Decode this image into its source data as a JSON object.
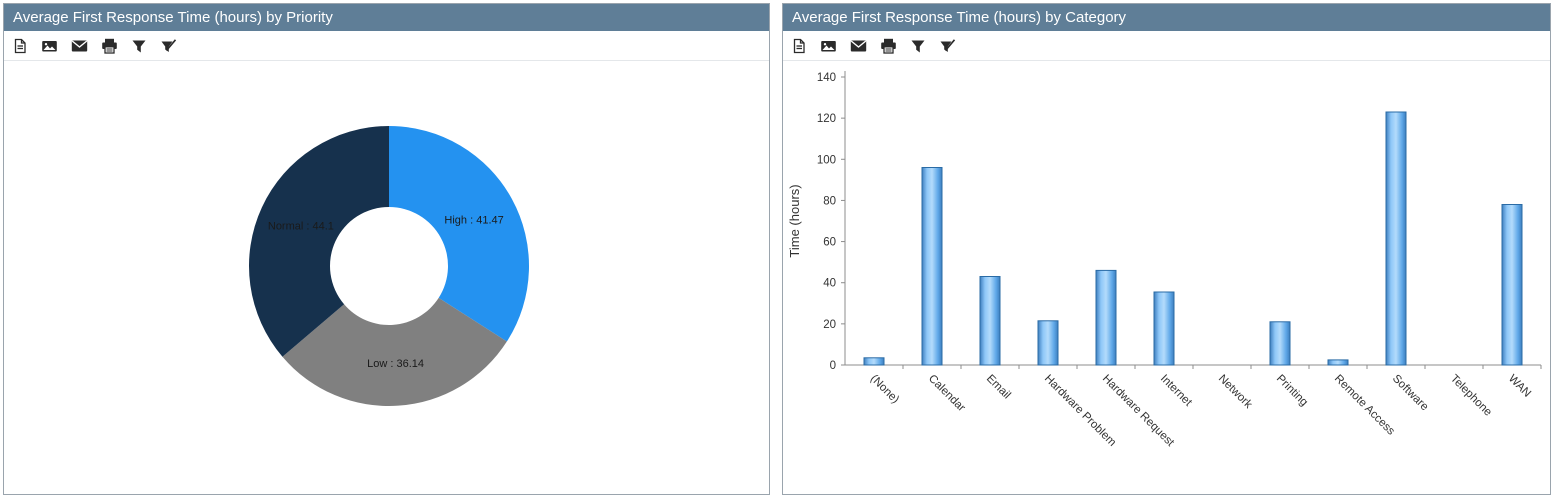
{
  "theme": {
    "header_bg": "#5f7e97",
    "header_text": "#ffffff",
    "panel_border": "#9aa4ad",
    "axis_color": "#8c8c8c",
    "icon_color": "#2b2b2b"
  },
  "panels": {
    "priority": {
      "title": "Average First Response Time (hours) by Priority",
      "toolbar_icons": [
        "export-pdf-icon",
        "export-image-icon",
        "email-icon",
        "print-icon",
        "filter-icon",
        "clear-filter-icon"
      ]
    },
    "category": {
      "title": "Average First Response Time (hours) by Category",
      "toolbar_icons": [
        "export-pdf-icon",
        "export-image-icon",
        "email-icon",
        "print-icon",
        "filter-icon",
        "clear-filter-icon"
      ]
    }
  },
  "chart_data": [
    {
      "type": "pie",
      "title": "Average First Response Time (hours) by Priority",
      "donut": true,
      "labels": [
        "High",
        "Low",
        "Normal"
      ],
      "values": [
        41.47,
        36.14,
        44.1
      ],
      "colors": [
        "#2492f0",
        "#808080",
        "#16314d"
      ],
      "label_format": "{label} : {value}",
      "start_angle_deg": 0,
      "direction": "clockwise",
      "legend": "none"
    },
    {
      "type": "bar",
      "title": "Average First Response Time (hours) by Category",
      "categories": [
        "(None)",
        "Calendar",
        "Email",
        "Hardware Problem",
        "Hardware Request",
        "Internet",
        "Network",
        "Printing",
        "Remote Access",
        "Software",
        "Telephone",
        "WAN"
      ],
      "values": [
        3.5,
        96,
        43,
        21.5,
        46,
        35.5,
        0,
        21,
        2.5,
        123,
        0,
        78
      ],
      "xlabel": "",
      "ylabel": "Time (hours)",
      "ylim": [
        0,
        140
      ],
      "ytick_step": 20,
      "grid": "off",
      "legend": "none",
      "bar_fill": "#6fb5f3",
      "bar_border": "#2a6ba5",
      "label_rotation_deg": 45
    }
  ]
}
